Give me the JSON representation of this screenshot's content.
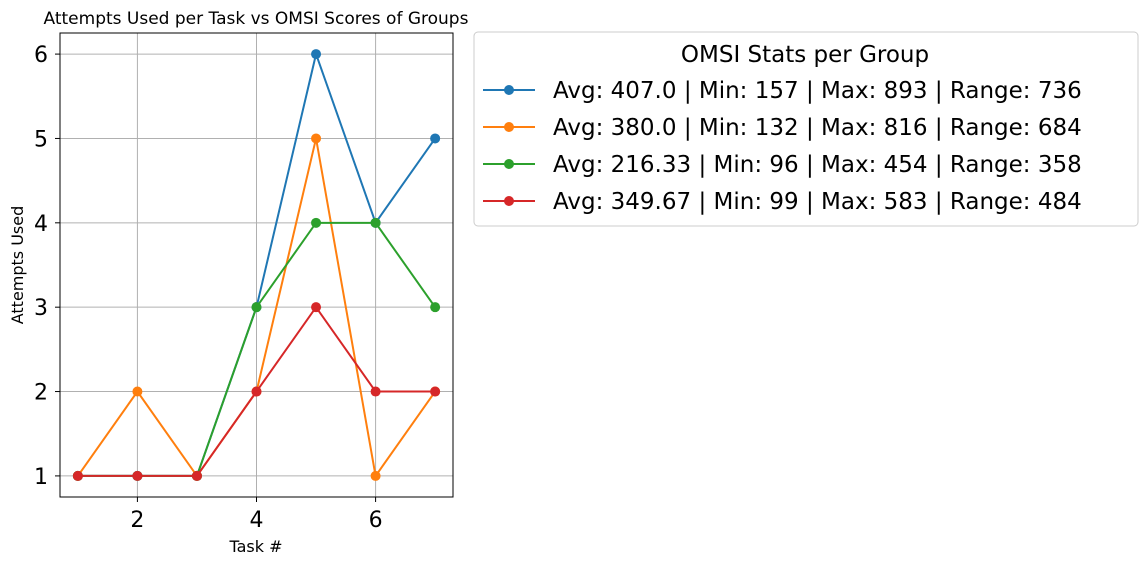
{
  "chart_data": {
    "type": "line",
    "title": "Attempts Used per Task vs OMSI Scores of Groups",
    "xlabel": "Task #",
    "ylabel": "Attempts Used",
    "xlim": [
      0.7,
      7.3
    ],
    "ylim": [
      0.75,
      6.25
    ],
    "xticks": [
      2,
      4,
      6
    ],
    "yticks": [
      1,
      2,
      3,
      4,
      5,
      6
    ],
    "grid": true,
    "legend": {
      "title": "OMSI Stats per Group",
      "placement": "outside-upper-right"
    },
    "x": [
      1,
      2,
      3,
      4,
      5,
      6,
      7
    ],
    "series": [
      {
        "name": "Avg: 407.0 | Min: 157 | Max: 893 | Range: 736",
        "color": "#1f77b4",
        "values": [
          1,
          1,
          1,
          3,
          6,
          4,
          5
        ]
      },
      {
        "name": "Avg: 380.0 | Min: 132 | Max: 816 | Range: 684",
        "color": "#ff7f0e",
        "values": [
          1,
          2,
          1,
          2,
          5,
          1,
          2
        ]
      },
      {
        "name": "Avg: 216.33 | Min: 96 | Max: 454 | Range: 358",
        "color": "#2ca02c",
        "values": [
          1,
          1,
          1,
          3,
          4,
          4,
          3
        ]
      },
      {
        "name": "Avg: 349.67 | Min: 99 | Max: 583 | Range: 484",
        "color": "#d62728",
        "values": [
          1,
          1,
          1,
          2,
          3,
          2,
          2
        ]
      }
    ]
  }
}
